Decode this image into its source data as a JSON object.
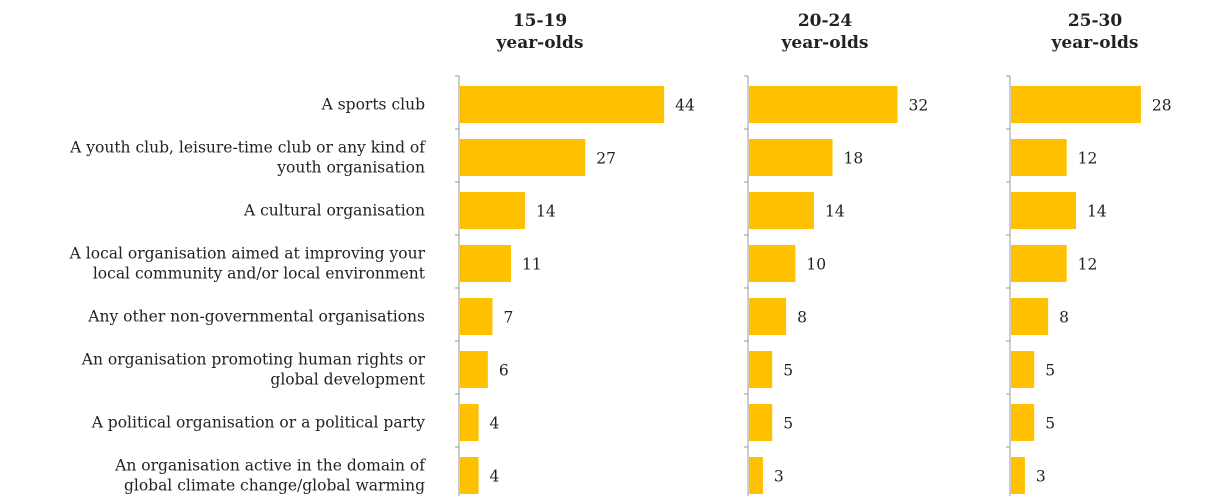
{
  "chart_data": {
    "type": "bar",
    "orientation": "horizontal",
    "bar_color": "#FFC000",
    "categories": [
      [
        "A sports club"
      ],
      [
        "A youth club, leisure-time club or any kind of",
        "youth organisation"
      ],
      [
        "A cultural organisation"
      ],
      [
        "A local organisation aimed at improving your",
        "local community and/or local environment"
      ],
      [
        "Any other non-governmental organisations"
      ],
      [
        "An organisation promoting human rights or",
        "global development"
      ],
      [
        "A political organisation or a political party"
      ],
      [
        "An organisation active in the domain of",
        "global climate change/global warming"
      ]
    ],
    "series": [
      {
        "name": "15-19 year-olds",
        "title_lines": [
          "15-19",
          "year-olds"
        ],
        "values": [
          44,
          27,
          14,
          11,
          7,
          6,
          4,
          4
        ]
      },
      {
        "name": "20-24 year-olds",
        "title_lines": [
          "20-24",
          "year-olds"
        ],
        "values": [
          32,
          18,
          14,
          10,
          8,
          5,
          5,
          3
        ]
      },
      {
        "name": "25-30 year-olds",
        "title_lines": [
          "25-30",
          "year-olds"
        ],
        "values": [
          28,
          12,
          14,
          12,
          8,
          5,
          5,
          3
        ]
      }
    ],
    "xlim": [
      0,
      50
    ],
    "grid": false,
    "legend": "none"
  }
}
